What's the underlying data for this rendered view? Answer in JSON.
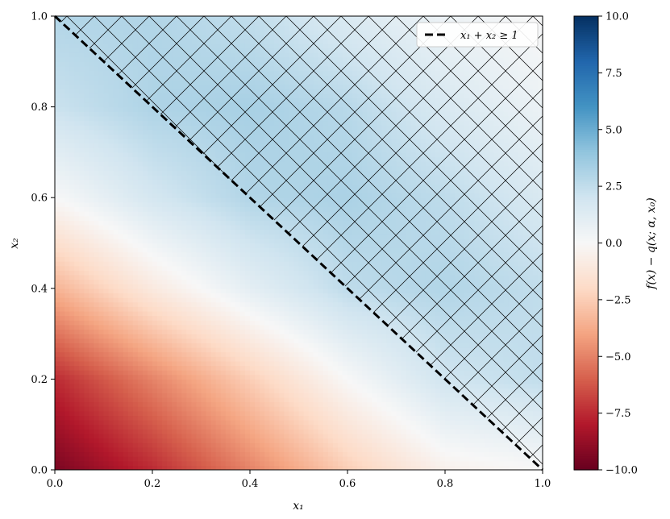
{
  "chart_data": {
    "type": "heatmap",
    "title": "",
    "xlabel": "x₁",
    "ylabel": "x₂",
    "xlim": [
      0.0,
      1.0
    ],
    "ylim": [
      0.0,
      1.0
    ],
    "xticks": [
      0.0,
      0.2,
      0.4,
      0.6,
      0.8,
      1.0
    ],
    "xtick_labels": [
      "0.0",
      "0.2",
      "0.4",
      "0.6",
      "0.8",
      "1.0"
    ],
    "yticks": [
      0.0,
      0.2,
      0.4,
      0.6,
      0.8,
      1.0
    ],
    "ytick_labels": [
      "0.0",
      "0.2",
      "0.4",
      "0.6",
      "0.8",
      "1.0"
    ],
    "colormap": "RdBu",
    "colorbar": {
      "label": "f(x) − q(x; α, x₀)",
      "range": [
        -10.0,
        10.0
      ],
      "ticks": [
        10.0,
        7.5,
        5.0,
        2.5,
        0.0,
        -2.5,
        -5.0,
        -7.5,
        -10.0
      ],
      "tick_labels": [
        "10.0",
        "7.5",
        "5.0",
        "2.5",
        "0.0",
        "−2.5",
        "−5.0",
        "−7.5",
        "−10.0"
      ]
    },
    "field_samples": {
      "x": [
        0.0,
        0.2,
        0.4,
        0.6,
        0.8,
        1.0
      ],
      "y": [
        0.0,
        0.2,
        0.4,
        0.6,
        0.8,
        1.0
      ],
      "z": [
        [
          -9.5,
          -7.5,
          -5.0,
          -2.5,
          -0.5,
          0.0
        ],
        [
          -7.5,
          -5.0,
          -2.5,
          0.0,
          2.0,
          2.5
        ],
        [
          -3.5,
          -1.0,
          1.0,
          2.6,
          3.0,
          2.5
        ],
        [
          0.0,
          1.8,
          3.0,
          3.2,
          2.6,
          1.6
        ],
        [
          2.2,
          3.1,
          3.3,
          2.8,
          1.6,
          0.6
        ],
        [
          3.0,
          3.0,
          2.5,
          1.5,
          0.6,
          0.0
        ]
      ]
    },
    "feasible_region": {
      "constraint": "x1 + x2 >= 1",
      "line": {
        "x": [
          0.0,
          1.0
        ],
        "y": [
          1.0,
          0.0
        ]
      },
      "hatch": "crosshatch"
    },
    "legend": {
      "placement": "top-right",
      "entries": [
        {
          "label": "x₁ + x₂ ≥ 1",
          "style": "dashed",
          "color": "#000000"
        }
      ]
    }
  }
}
